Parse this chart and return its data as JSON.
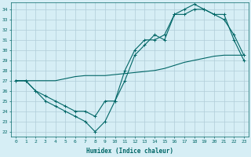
{
  "title": "",
  "xlabel": "Humidex (Indice chaleur)",
  "ylabel": "",
  "xlim": [
    -0.5,
    23.5
  ],
  "ylim": [
    21.5,
    34.7
  ],
  "yticks": [
    22,
    23,
    24,
    25,
    26,
    27,
    28,
    29,
    30,
    31,
    32,
    33,
    34
  ],
  "xticks": [
    0,
    1,
    2,
    3,
    4,
    5,
    6,
    7,
    8,
    9,
    10,
    11,
    12,
    13,
    14,
    15,
    16,
    17,
    18,
    19,
    20,
    21,
    22,
    23
  ],
  "bg_color": "#d6eef5",
  "grid_color": "#b0ccd8",
  "line_color": "#006666",
  "lines": [
    {
      "x": [
        0,
        1,
        2,
        3,
        4,
        5,
        6,
        7,
        8,
        9,
        10,
        11,
        12,
        13,
        14,
        15,
        16,
        17,
        18,
        19,
        20,
        21,
        22,
        23
      ],
      "y": [
        27,
        27,
        26,
        25,
        24.5,
        24,
        23.5,
        23,
        22,
        23,
        25,
        27,
        29.5,
        30.5,
        31.5,
        31,
        33.5,
        33.5,
        34,
        34,
        33.5,
        33,
        31.5,
        29.5
      ],
      "marker": true
    },
    {
      "x": [
        0,
        1,
        2,
        3,
        4,
        5,
        6,
        7,
        8,
        9,
        10,
        11,
        12,
        13,
        14,
        15,
        16,
        17,
        18,
        19,
        20,
        21,
        22,
        23
      ],
      "y": [
        27,
        27,
        26,
        25.5,
        25,
        24.5,
        24,
        24,
        23.5,
        25,
        25,
        28,
        30,
        31,
        31,
        31.5,
        33.5,
        34,
        34.5,
        34,
        33.5,
        33.5,
        31,
        29
      ],
      "marker": true
    },
    {
      "x": [
        0,
        1,
        2,
        3,
        4,
        5,
        6,
        7,
        8,
        9,
        10,
        11,
        12,
        13,
        14,
        15,
        16,
        17,
        18,
        19,
        20,
        21,
        22,
        23
      ],
      "y": [
        27,
        27,
        27,
        27,
        27,
        27.2,
        27.4,
        27.5,
        27.5,
        27.5,
        27.6,
        27.7,
        27.8,
        27.9,
        28,
        28.2,
        28.5,
        28.8,
        29,
        29.2,
        29.4,
        29.5,
        29.5,
        29.5
      ],
      "marker": false
    }
  ]
}
